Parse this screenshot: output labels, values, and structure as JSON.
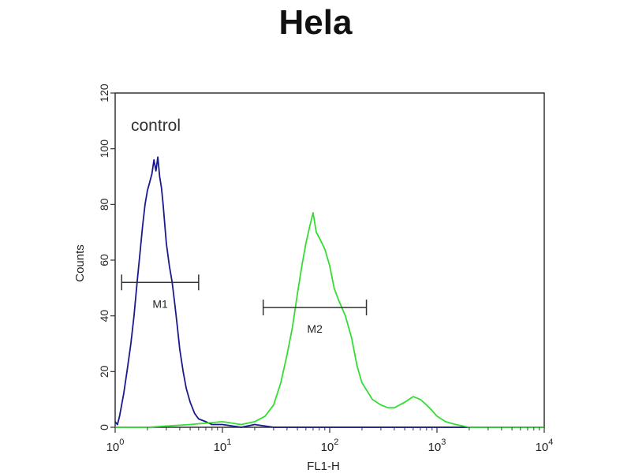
{
  "chart_data": {
    "type": "line",
    "title": "Hela",
    "xlabel": "FL1-H",
    "ylabel": "Counts",
    "x_scale": "log",
    "xlim": [
      1,
      10000
    ],
    "ylim": [
      0,
      120
    ],
    "x_ticks": [
      {
        "value": 1,
        "base": "10",
        "exp": "0"
      },
      {
        "value": 10,
        "base": "10",
        "exp": "1"
      },
      {
        "value": 100,
        "base": "10",
        "exp": "2"
      },
      {
        "value": 1000,
        "base": "10",
        "exp": "3"
      },
      {
        "value": 10000,
        "base": "10",
        "exp": "4"
      }
    ],
    "y_ticks": [
      0,
      20,
      40,
      60,
      80,
      100,
      120
    ],
    "annotations": [
      {
        "text": "control"
      }
    ],
    "markers": [
      {
        "label": "M1",
        "x_start": 1.15,
        "x_end": 6.0,
        "y": 52
      },
      {
        "label": "M2",
        "x_start": 24,
        "x_end": 220,
        "y": 43
      }
    ],
    "series": [
      {
        "color": "#1a1a8c",
        "x": [
          1.0,
          1.05,
          1.1,
          1.2,
          1.3,
          1.4,
          1.5,
          1.6,
          1.7,
          1.8,
          1.9,
          2.0,
          2.1,
          2.2,
          2.3,
          2.4,
          2.5,
          2.6,
          2.7,
          2.8,
          3.0,
          3.2,
          3.4,
          3.6,
          3.8,
          4.0,
          4.3,
          4.6,
          5.0,
          5.5,
          6.0,
          7.0,
          8.0,
          10,
          15,
          20,
          30,
          50,
          100,
          300,
          1000,
          3000,
          10000
        ],
        "y": [
          2,
          1,
          4,
          12,
          21,
          30,
          40,
          52,
          62,
          72,
          80,
          85,
          88,
          91,
          96,
          92,
          97,
          90,
          86,
          80,
          66,
          58,
          52,
          44,
          36,
          28,
          20,
          14,
          9,
          5,
          3,
          2,
          1,
          1,
          0,
          1,
          0,
          0,
          0,
          0,
          0,
          0,
          0
        ]
      },
      {
        "color": "#33dd33",
        "x": [
          1.0,
          2,
          5,
          10,
          15,
          20,
          25,
          30,
          35,
          40,
          45,
          50,
          55,
          60,
          65,
          70,
          75,
          80,
          90,
          100,
          110,
          120,
          140,
          160,
          180,
          200,
          250,
          300,
          350,
          400,
          500,
          600,
          700,
          800,
          900,
          1000,
          1200,
          1500,
          2000,
          5000,
          10000
        ],
        "y": [
          0,
          0,
          1,
          2,
          1,
          2,
          4,
          8,
          16,
          26,
          36,
          48,
          58,
          66,
          72,
          77,
          70,
          68,
          64,
          58,
          50,
          46,
          40,
          32,
          22,
          16,
          10,
          8,
          7,
          7,
          9,
          11,
          10,
          8,
          6,
          4,
          2,
          1,
          0,
          0,
          0
        ]
      }
    ]
  }
}
